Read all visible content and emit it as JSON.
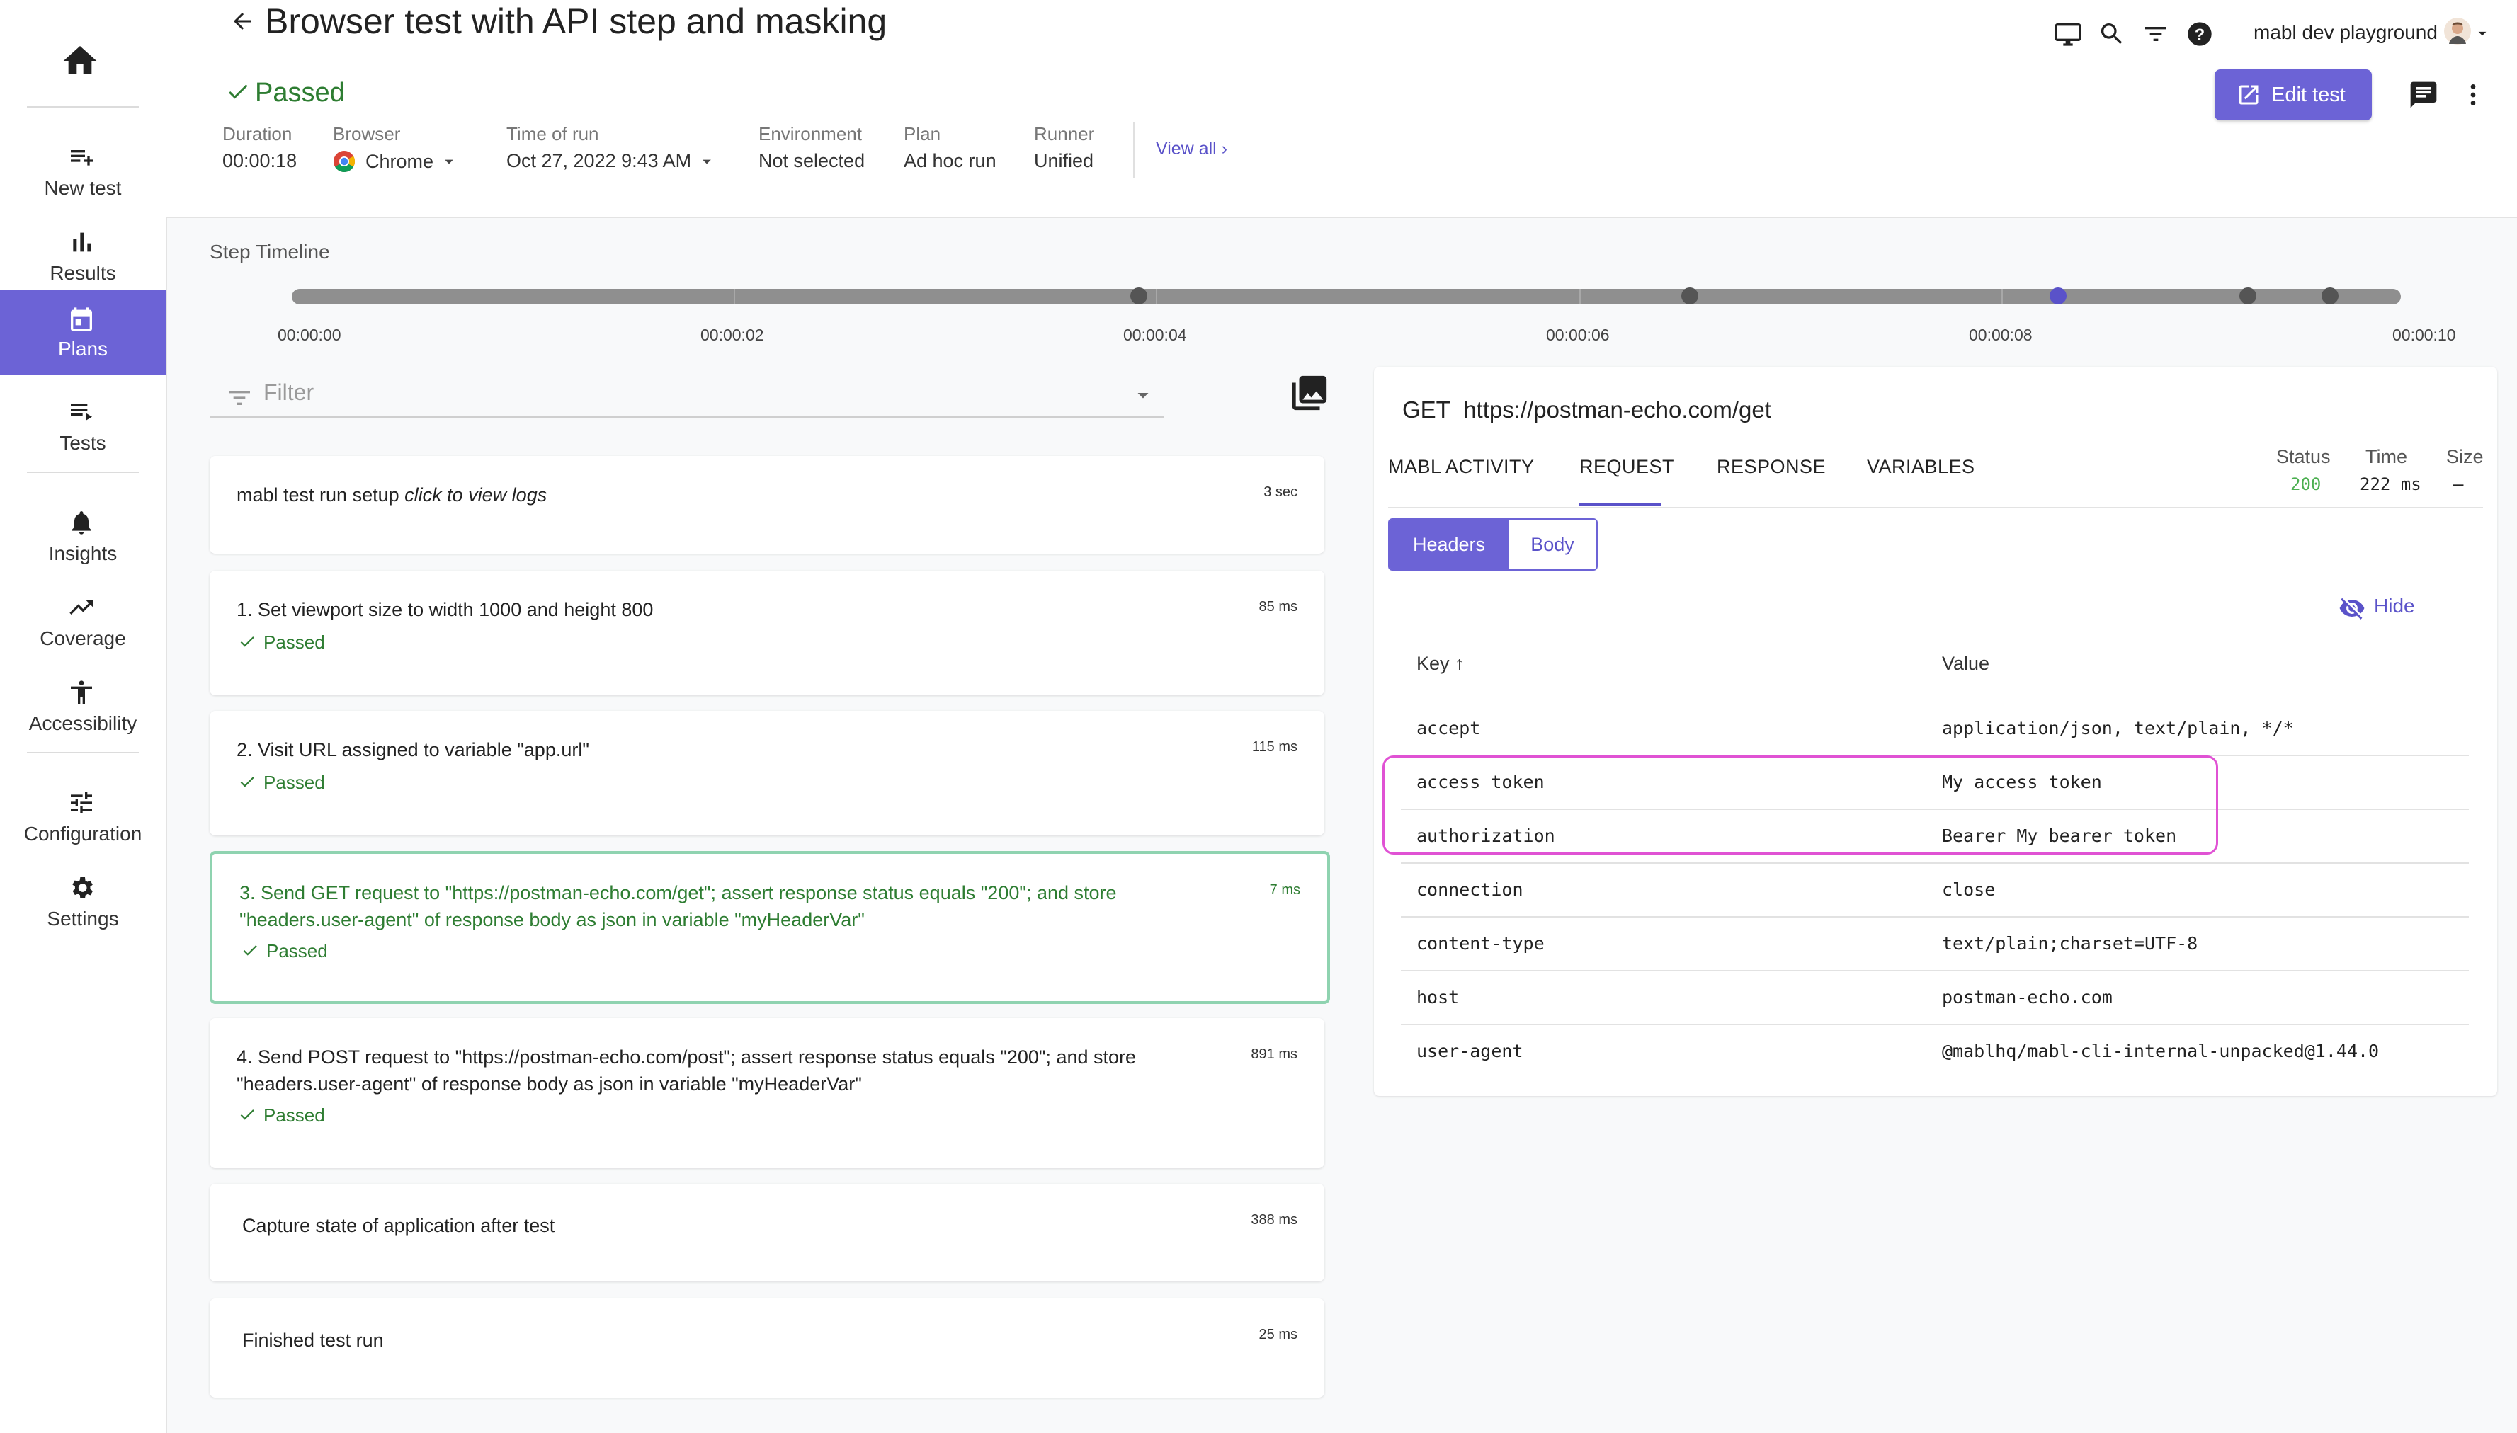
{
  "sidebar": {
    "items": [
      {
        "label": "New test",
        "icon": "new-test-icon"
      },
      {
        "label": "Results",
        "icon": "bar-chart-icon"
      },
      {
        "label": "Plans",
        "icon": "calendar-icon"
      },
      {
        "label": "Tests",
        "icon": "list-icon"
      },
      {
        "label": "Insights",
        "icon": "bell-icon"
      },
      {
        "label": "Coverage",
        "icon": "trending-up-icon"
      },
      {
        "label": "Accessibility",
        "icon": "accessibility-icon"
      },
      {
        "label": "Configuration",
        "icon": "sliders-icon"
      },
      {
        "label": "Settings",
        "icon": "gear-icon"
      }
    ],
    "active": "Plans"
  },
  "header": {
    "title": "Browser test with API step and masking",
    "status": "Passed",
    "meta": {
      "duration_label": "Duration",
      "duration": "00:00:18",
      "browser_label": "Browser",
      "browser": "Chrome",
      "time_label": "Time of run",
      "time": "Oct 27, 2022 9:43 AM",
      "env_label": "Environment",
      "env": "Not selected",
      "plan_label": "Plan",
      "plan": "Ad hoc run",
      "runner_label": "Runner",
      "runner": "Unified"
    },
    "view_all": "View all",
    "account": "mabl dev playground",
    "edit_button": "Edit test"
  },
  "timeline": {
    "title": "Step Timeline",
    "ticks": [
      "00:00:00",
      "00:00:02",
      "00:00:04",
      "00:00:06",
      "00:00:08",
      "00:00:10"
    ]
  },
  "filter": {
    "placeholder": "Filter"
  },
  "steps": [
    {
      "text": "mabl test run setup",
      "extra": "click to view logs",
      "duration": "3 sec"
    },
    {
      "text": "1. Set viewport size to width 1000 and height 800",
      "duration": "85 ms",
      "status": "Passed"
    },
    {
      "text": "2. Visit URL assigned to variable \"app.url\"",
      "duration": "115 ms",
      "status": "Passed"
    },
    {
      "text": "3. Send GET request to \"https://postman-echo.com/get\"; assert response status equals \"200\"; and store \"headers.user-agent\" of response body as json in variable \"myHeaderVar\"",
      "duration": "7 ms",
      "status": "Passed"
    },
    {
      "text": "4. Send POST request to \"https://postman-echo.com/post\"; assert response status equals \"200\"; and store \"headers.user-agent\" of response body as json in variable \"myHeaderVar\"",
      "duration": "891 ms",
      "status": "Passed"
    },
    {
      "text": "Capture state of application after test",
      "duration": "388 ms"
    },
    {
      "text": "Finished test run",
      "duration": "25 ms"
    }
  ],
  "panel": {
    "method": "GET",
    "url": "https://postman-echo.com/get",
    "tabs": [
      "MABL ACTIVITY",
      "REQUEST",
      "RESPONSE",
      "VARIABLES"
    ],
    "active_tab": "REQUEST",
    "status_label": "Status",
    "status": "200",
    "time_label": "Time",
    "time": "222 ms",
    "size_label": "Size",
    "size": "–",
    "segments": [
      "Headers",
      "Body"
    ],
    "hide": "Hide",
    "key_header": "Key ↑",
    "value_header": "Value",
    "headers": [
      {
        "key": "accept",
        "value": "application/json, text/plain, */*"
      },
      {
        "key": "access_token",
        "value": "My access token"
      },
      {
        "key": "authorization",
        "value": "Bearer My bearer token"
      },
      {
        "key": "connection",
        "value": "close"
      },
      {
        "key": "content-type",
        "value": "text/plain;charset=UTF-8"
      },
      {
        "key": "host",
        "value": "postman-echo.com"
      },
      {
        "key": "user-agent",
        "value": "@mablhq/mabl-cli-internal-unpacked@1.44.0"
      }
    ]
  },
  "colors": {
    "accent": "#6c63d6",
    "success": "#2e7d32",
    "mask_highlight": "#e052d4",
    "status_ok": "#4caf50"
  }
}
